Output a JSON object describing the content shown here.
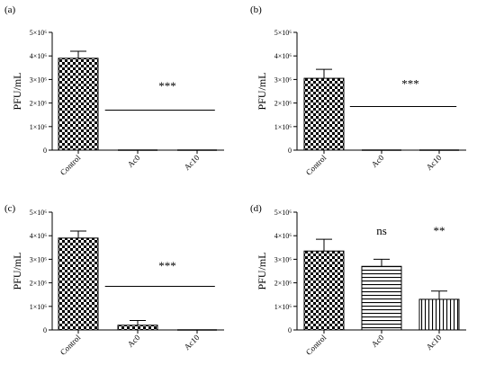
{
  "chart_data": [
    {
      "type": "bar",
      "panel_label": "(a)",
      "categories": [
        "Control",
        "Ac0",
        "Ac10"
      ],
      "values": [
        3900000,
        0,
        0
      ],
      "errors": [
        300000,
        0,
        0
      ],
      "fills": [
        "checker",
        "checker",
        "checker"
      ],
      "ylabel": "PFU/mL",
      "ylim": [
        0,
        5000000
      ],
      "yticks": [
        0,
        1000000,
        2000000,
        3000000,
        4000000,
        5000000
      ],
      "ytick_labels": [
        "0",
        "1×10⁶",
        "2×10⁶",
        "3×10⁶",
        "4×10⁶",
        "5×10⁶"
      ],
      "annotations": [
        {
          "text": "***",
          "line": true,
          "line_y": 1700000,
          "span": [
            0.45,
            2.3
          ],
          "text_y": 2550000,
          "text_x": 1.5
        }
      ]
    },
    {
      "type": "bar",
      "panel_label": "(b)",
      "categories": [
        "Control",
        "Ac0",
        "Ac10"
      ],
      "values": [
        3050000,
        0,
        0
      ],
      "errors": [
        380000,
        0,
        0
      ],
      "fills": [
        "checker",
        "checker",
        "checker"
      ],
      "ylabel": "PFU/mL",
      "ylim": [
        0,
        5000000
      ],
      "yticks": [
        0,
        1000000,
        2000000,
        3000000,
        4000000,
        5000000
      ],
      "ytick_labels": [
        "0",
        "1×10⁶",
        "2×10⁶",
        "3×10⁶",
        "4×10⁶",
        "5×10⁶"
      ],
      "annotations": [
        {
          "text": "***",
          "line": true,
          "line_y": 1850000,
          "span": [
            0.45,
            2.3
          ],
          "text_y": 2650000,
          "text_x": 1.5
        }
      ]
    },
    {
      "type": "bar",
      "panel_label": "(c)",
      "categories": [
        "Control",
        "Ac0",
        "Ac10"
      ],
      "values": [
        3900000,
        200000,
        0
      ],
      "errors": [
        300000,
        200000,
        0
      ],
      "fills": [
        "checker",
        "checker",
        "checker"
      ],
      "ylabel": "PFU/mL",
      "ylim": [
        0,
        5000000
      ],
      "yticks": [
        0,
        1000000,
        2000000,
        3000000,
        4000000,
        5000000
      ],
      "ytick_labels": [
        "0",
        "1×10⁶",
        "2×10⁶",
        "3×10⁶",
        "4×10⁶",
        "5×10⁶"
      ],
      "annotations": [
        {
          "text": "***",
          "line": true,
          "line_y": 1850000,
          "span": [
            0.45,
            2.3
          ],
          "text_y": 2550000,
          "text_x": 1.5
        }
      ]
    },
    {
      "type": "bar",
      "panel_label": "(d)",
      "categories": [
        "Control",
        "Ac0",
        "Ac10"
      ],
      "values": [
        3350000,
        2700000,
        1300000
      ],
      "errors": [
        500000,
        300000,
        350000
      ],
      "fills": [
        "checker",
        "hlines",
        "vlines"
      ],
      "ylabel": "PFU/mL",
      "ylim": [
        0,
        5000000
      ],
      "yticks": [
        0,
        1000000,
        2000000,
        3000000,
        4000000,
        5000000
      ],
      "ytick_labels": [
        "0",
        "1×10⁶",
        "2×10⁶",
        "3×10⁶",
        "4×10⁶",
        "5×10⁶"
      ],
      "annotations": [
        {
          "text": "ns",
          "line": false,
          "text_y": 4050000,
          "text_x": 1
        },
        {
          "text": "**",
          "line": false,
          "text_y": 4050000,
          "text_x": 2
        }
      ]
    }
  ]
}
